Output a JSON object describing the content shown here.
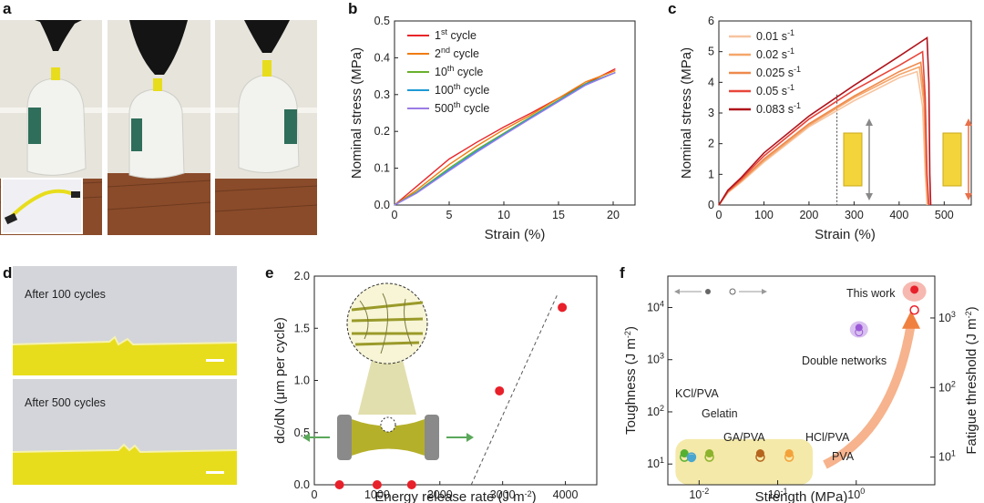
{
  "panels": {
    "a": "a",
    "b": "b",
    "c": "c",
    "d": "d",
    "e": "e",
    "f": "f"
  },
  "photo_d": {
    "top_caption": "After 100 cycles",
    "bottom_caption": "After 500 cycles"
  },
  "colors": {
    "photo_bg": "#e7e4dc",
    "hydrogel_yellow": "#e8dd1c",
    "floor": "#8a4b2a",
    "glove": "#141414",
    "jug": "#f2f2ee",
    "fit_region": "#f4e9a8",
    "this_work": "#e8202a",
    "double_net": "#9b59d6"
  },
  "chart_data": [
    {
      "id": "b",
      "type": "line",
      "xlabel": "Strain (%)",
      "ylabel": "Nominal stress (MPa)",
      "xlim": [
        0,
        22
      ],
      "ylim": [
        0,
        0.5
      ],
      "xticks": [
        0,
        5,
        10,
        15,
        20
      ],
      "yticks": [
        0.0,
        0.1,
        0.2,
        0.3,
        0.4,
        0.5
      ],
      "ytick_labels": [
        "0.0",
        "0.1",
        "0.2",
        "0.3",
        "0.4",
        "0.5"
      ],
      "series": [
        {
          "name": "1st cycle",
          "base": "1",
          "sup": "st",
          "rest": " cycle",
          "color": "#e8262a",
          "x": [
            0,
            1,
            2,
            3,
            5,
            7.5,
            10,
            12.5,
            15,
            17.5,
            20.2
          ],
          "y": [
            0,
            0.025,
            0.05,
            0.075,
            0.125,
            0.17,
            0.212,
            0.25,
            0.29,
            0.33,
            0.37
          ]
        },
        {
          "name": "2nd cycle",
          "base": "2",
          "sup": "nd",
          "rest": " cycle",
          "color": "#f07c12",
          "x": [
            0,
            2,
            5,
            7.5,
            10,
            12.5,
            15,
            17.5,
            20.2
          ],
          "y": [
            0,
            0.04,
            0.11,
            0.16,
            0.205,
            0.245,
            0.29,
            0.335,
            0.365
          ]
        },
        {
          "name": "10th cycle",
          "base": "10",
          "sup": "th",
          "rest": " cycle",
          "color": "#6ab02c",
          "x": [
            0,
            2,
            5,
            7.5,
            10,
            12.5,
            15,
            17.5,
            20.2
          ],
          "y": [
            0,
            0.035,
            0.1,
            0.15,
            0.195,
            0.24,
            0.285,
            0.33,
            0.36
          ]
        },
        {
          "name": "100th cycle",
          "base": "100",
          "sup": "th",
          "rest": " cycle",
          "color": "#1e9ad6",
          "x": [
            0,
            2,
            5,
            7.5,
            10,
            12.5,
            15,
            17.5,
            20.2
          ],
          "y": [
            0,
            0.033,
            0.096,
            0.146,
            0.192,
            0.238,
            0.283,
            0.328,
            0.36
          ]
        },
        {
          "name": "500th cycle",
          "base": "500",
          "sup": "th",
          "rest": " cycle",
          "color": "#9b7be6",
          "x": [
            0,
            2,
            5,
            7.5,
            10,
            12.5,
            15,
            17.5,
            20.2
          ],
          "y": [
            0,
            0.032,
            0.093,
            0.143,
            0.19,
            0.236,
            0.281,
            0.326,
            0.36
          ]
        }
      ]
    },
    {
      "id": "c",
      "type": "line",
      "xlabel": "Strain (%)",
      "ylabel": "Nominal stress (MPa)",
      "xlim": [
        0,
        560
      ],
      "ylim": [
        0,
        6
      ],
      "xticks": [
        0,
        100,
        200,
        300,
        400,
        500
      ],
      "yticks": [
        0,
        1,
        2,
        3,
        4,
        5,
        6
      ],
      "dotted_line_x": 262,
      "series": [
        {
          "name": "0.01 s-1",
          "label": "0.01 s",
          "sup": "-1",
          "color": "#f7c4a0",
          "x": [
            0,
            20,
            50,
            100,
            200,
            300,
            400,
            440,
            452,
            458,
            462
          ],
          "y": [
            0,
            0.4,
            0.75,
            1.4,
            2.55,
            3.4,
            4.15,
            4.35,
            3.2,
            1.0,
            0
          ]
        },
        {
          "name": "0.02 s-1",
          "label": "0.02 s",
          "sup": "-1",
          "color": "#f5a66a",
          "x": [
            0,
            20,
            50,
            100,
            200,
            300,
            400,
            445,
            455,
            460,
            464
          ],
          "y": [
            0,
            0.42,
            0.78,
            1.45,
            2.6,
            3.5,
            4.25,
            4.5,
            3.3,
            1.0,
            0
          ]
        },
        {
          "name": "0.025 s-1",
          "label": "0.025 s",
          "sup": "-1",
          "color": "#ee8a4c",
          "x": [
            0,
            20,
            50,
            100,
            200,
            300,
            400,
            448,
            456,
            461,
            465
          ],
          "y": [
            0,
            0.43,
            0.8,
            1.5,
            2.65,
            3.55,
            4.35,
            4.65,
            3.5,
            1.0,
            0
          ]
        },
        {
          "name": "0.05 s-1",
          "label": "0.05 s",
          "sup": "-1",
          "color": "#e8463a",
          "x": [
            0,
            20,
            50,
            100,
            200,
            300,
            400,
            452,
            458,
            462,
            466
          ],
          "y": [
            0,
            0.45,
            0.85,
            1.6,
            2.8,
            3.75,
            4.55,
            5.0,
            3.5,
            1.0,
            0
          ]
        },
        {
          "name": "0.083 s-1",
          "label": "0.083 s",
          "sup": "-1",
          "color": "#b0141c",
          "x": [
            0,
            20,
            50,
            100,
            200,
            300,
            400,
            462,
            466,
            468,
            470
          ],
          "y": [
            0,
            0.48,
            0.9,
            1.7,
            2.9,
            3.9,
            4.85,
            5.45,
            4.0,
            1.0,
            0
          ]
        }
      ]
    },
    {
      "id": "e",
      "type": "scatter",
      "xlabel": "Energy release rate (J m",
      "xlabel_sup": "-2",
      "xlabel_end": ")",
      "ylabel": "dc/dN (μm per cycle)",
      "xlim": [
        0,
        4500
      ],
      "ylim": [
        0,
        2.0
      ],
      "xticks": [
        0,
        1000,
        2000,
        3000,
        4000
      ],
      "yticks": [
        0.0,
        0.5,
        1.0,
        1.5,
        2.0
      ],
      "ytick_labels": [
        "0.0",
        "0.5",
        "1.0",
        "1.5",
        "2.0"
      ],
      "points": [
        {
          "x": 400,
          "y": 0.0
        },
        {
          "x": 1000,
          "y": 0.0
        },
        {
          "x": 1550,
          "y": 0.0
        },
        {
          "x": 2950,
          "y": 0.9
        },
        {
          "x": 3950,
          "y": 1.7
        }
      ],
      "fit_line": {
        "x": [
          2500,
          3870
        ],
        "y": [
          0.0,
          1.82
        ]
      },
      "point_color": "#e8202a"
    },
    {
      "id": "f",
      "type": "scatter",
      "xlabel": "Strength (MPa)",
      "ylabel_left": "Toughness (J m",
      "ylabel_left_sup": "-2",
      "ylabel_right": "Fatigue threshold (J m",
      "ylabel_right_sup": "-2",
      "xscale": "log",
      "xlim": [
        0.004,
        10
      ],
      "ylim_left": [
        4,
        40000
      ],
      "ylim_right": [
        4,
        4000
      ],
      "xticks": [
        0.01,
        0.1,
        1
      ],
      "xtick_labels": [
        {
          "base": "10",
          "sup": "-2"
        },
        {
          "base": "10",
          "sup": "-1"
        },
        {
          "base": "10",
          "sup": "0"
        }
      ],
      "yticks_left": [
        {
          "value": 10,
          "base": "10",
          "sup": "1"
        },
        {
          "value": 100,
          "base": "10",
          "sup": "2"
        },
        {
          "value": 1000,
          "base": "10",
          "sup": "3"
        },
        {
          "value": 10000,
          "base": "10",
          "sup": "4"
        }
      ],
      "yticks_right": [
        {
          "value": 10,
          "base": "10",
          "sup": "1"
        },
        {
          "value": 100,
          "base": "10",
          "sup": "2"
        },
        {
          "value": 1000,
          "base": "10",
          "sup": "3"
        }
      ],
      "materials": [
        {
          "name": "KCl/PVA",
          "strength": 0.0065,
          "toughness": 16,
          "threshold": 10,
          "color": "#55b032"
        },
        {
          "name": "Gelatin",
          "strength": 0.008,
          "toughness": 13,
          "threshold": 10,
          "color": "#4aa5d0"
        },
        {
          "name": "GA/PVA",
          "strength": 0.0135,
          "toughness": 16,
          "threshold": 10,
          "color": "#8db32c"
        },
        {
          "name": "HCl/PVA",
          "strength": 0.06,
          "toughness": 16,
          "threshold": 10,
          "color": "#b5651d"
        },
        {
          "name": "PVA",
          "strength": 0.14,
          "toughness": 16,
          "threshold": 10,
          "color": "#f3a23a"
        },
        {
          "name": "Double networks",
          "strength": 1.0,
          "toughness": 3800,
          "threshold": null,
          "color": "#9b59d6"
        },
        {
          "name": "This work",
          "strength": 5.5,
          "toughness": 22000,
          "threshold": 1300,
          "color": "#e8202a"
        }
      ]
    }
  ]
}
